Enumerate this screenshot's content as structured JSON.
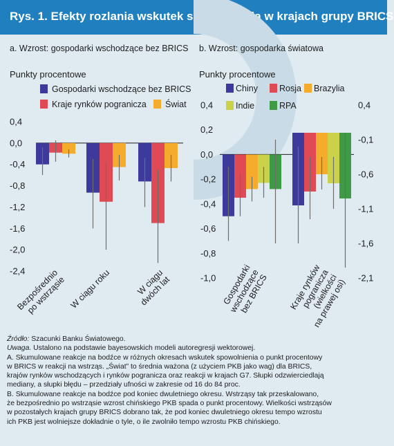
{
  "header": {
    "title": "Rys. 1. Efekty rozlania wskutek spowolnienia w krajach grupy BRICS"
  },
  "colors": {
    "header_bg": "#1f7fbf",
    "background": "#dfeaf1",
    "watermark": "#c9dbe6",
    "error_bar": "#6d6d6d"
  },
  "chart_data": [
    {
      "type": "bar",
      "panel_title": "a. Wzrost: gospodarki wschodzące bez BRICS",
      "ylabel": "Punkty procentowe",
      "ylim": [
        -2.4,
        0.4
      ],
      "yticks": [
        0.4,
        0.0,
        -0.4,
        -0.8,
        -1.2,
        -1.6,
        -2.0,
        -2.4
      ],
      "ytick_labels": [
        "0,4",
        "0,0",
        "-0,4",
        "-0,8",
        "-1,2",
        "-1,6",
        "-2,0",
        "-2,4"
      ],
      "categories": [
        "Bezpośrednio po wstrząsie",
        "W ciągu roku",
        "W ciągu dwóch lat"
      ],
      "category_label_lines": [
        [
          "Bezpośrednio",
          "po wstrząsie"
        ],
        [
          "W ciągu roku"
        ],
        [
          "W ciągu",
          "dwóch lat"
        ]
      ],
      "series": [
        {
          "name": "Gospodarki wschodzące bez BRICS",
          "color": "#3d3a9c",
          "values": [
            -0.4,
            -0.93,
            -0.72
          ],
          "err_low": [
            -0.6,
            -1.6,
            -1.2
          ],
          "err_high": [
            -0.08,
            -0.3,
            -0.28
          ]
        },
        {
          "name": "Kraje rynków pogranicza",
          "color": "#e04a55",
          "values": [
            -0.18,
            -1.1,
            -1.5
          ],
          "err_low": [
            -0.35,
            -2.0,
            -2.25
          ],
          "err_high": [
            0.05,
            -0.35,
            -0.5
          ]
        },
        {
          "name": "Świat",
          "color": "#f5ac2d",
          "values": [
            -0.2,
            -0.45,
            -0.47
          ],
          "err_low": [
            -0.27,
            -0.7,
            -0.72
          ],
          "err_high": [
            -0.12,
            -0.22,
            -0.22
          ]
        }
      ]
    },
    {
      "type": "bar",
      "panel_title": "b. Wzrost: gospodarka światowa",
      "ylabel": "Punkty procentowe",
      "ylim": [
        -1.0,
        0.4
      ],
      "yticks": [
        0.4,
        0.2,
        0.0,
        -0.2,
        -0.4,
        -0.6,
        -0.8,
        -1.0
      ],
      "ytick_labels": [
        "0,4",
        "0,2",
        "0,0",
        "-0,2",
        "-0,4",
        "-0,6",
        "-0,8",
        "-1,0"
      ],
      "right_ylim": [
        -2.1,
        0.4
      ],
      "right_yticks": [
        0.4,
        -0.1,
        -0.6,
        -1.1,
        -1.6,
        -2.1
      ],
      "right_ytick_labels": [
        "0,4",
        "-0,1",
        "-0,6",
        "-1,1",
        "-1,6",
        "-2,1"
      ],
      "categories": [
        "Gospodarki wschodzące bez BRICS",
        "Kraje rynków pogranicza (wielkości na prawej osi)"
      ],
      "category_label_lines": [
        [
          "Gospodarki",
          "wschodzące",
          "bez BRICS"
        ],
        [
          "Kraje rynków",
          "pogranicza",
          "(wielkości",
          "na prawej osi)"
        ]
      ],
      "series": [
        {
          "name": "Chiny",
          "color": "#3d3a9c",
          "values": [
            -0.5,
            -1.05
          ],
          "err_low": [
            -0.7,
            -1.6
          ],
          "err_high": [
            -0.1,
            -0.2
          ]
        },
        {
          "name": "Rosja",
          "color": "#e04a55",
          "values": [
            -0.35,
            -0.85
          ],
          "err_low": [
            -0.5,
            -1.25
          ],
          "err_high": [
            -0.15,
            -0.35
          ]
        },
        {
          "name": "Brazylia",
          "color": "#f5ac2d",
          "values": [
            -0.28,
            -0.6
          ],
          "err_low": [
            -0.38,
            -0.82
          ],
          "err_high": [
            -0.18,
            -0.35
          ]
        },
        {
          "name": "Indie",
          "color": "#ccd14a",
          "values": [
            -0.23,
            -0.73
          ],
          "err_low": [
            -0.35,
            -1.1
          ],
          "err_high": [
            -0.1,
            -0.35
          ]
        },
        {
          "name": "RPA",
          "color": "#3e9a45",
          "values": [
            -0.28,
            -0.95
          ],
          "err_low": [
            -0.72,
            -1.95
          ],
          "err_high": [
            0.12,
            0.0
          ]
        }
      ]
    }
  ],
  "notes": {
    "source_label": "Źródło:",
    "source_text": " Szacunki Banku Światowego.",
    "note_label": "Uwaga.",
    "note_text": " Ustalono na podstawie bayesowskich modeli autoregresji wektorowej.",
    "note_lines": [
      "A. Skumulowane reakcje na bodźce w różnych okresach wskutek spowolnienia o punkt procentowy",
      "w BRICS w reakcji na wstrząs. „Świat” to średnia ważona (z użyciem PKB jako wag) dla BRICS,",
      "krajów rynków wschodzących i rynków pogranicza oraz reakcji w krajach G7. Słupki odzwierciedlają",
      "mediany, a słupki błędu – przedziały ufności w zakresie od 16 do 84 proc.",
      "B. Skumulowane reakcje na bodźce pod koniec dwuletniego okresu. Wstrząsy tak przeskalowano,",
      "że bezpośrednio po wstrząsie wzrost chińskiego PKB spada o punkt procentowy. Wielkości wstrząsów",
      "w pozostałych krajach grupy BRICS dobrano tak, że pod koniec dwuletniego okresu tempo wzrostu",
      "ich PKB jest wolniejsze dokładnie o tyle, o ile zwolniło tempo wzrostu PKB chińskiego."
    ]
  }
}
